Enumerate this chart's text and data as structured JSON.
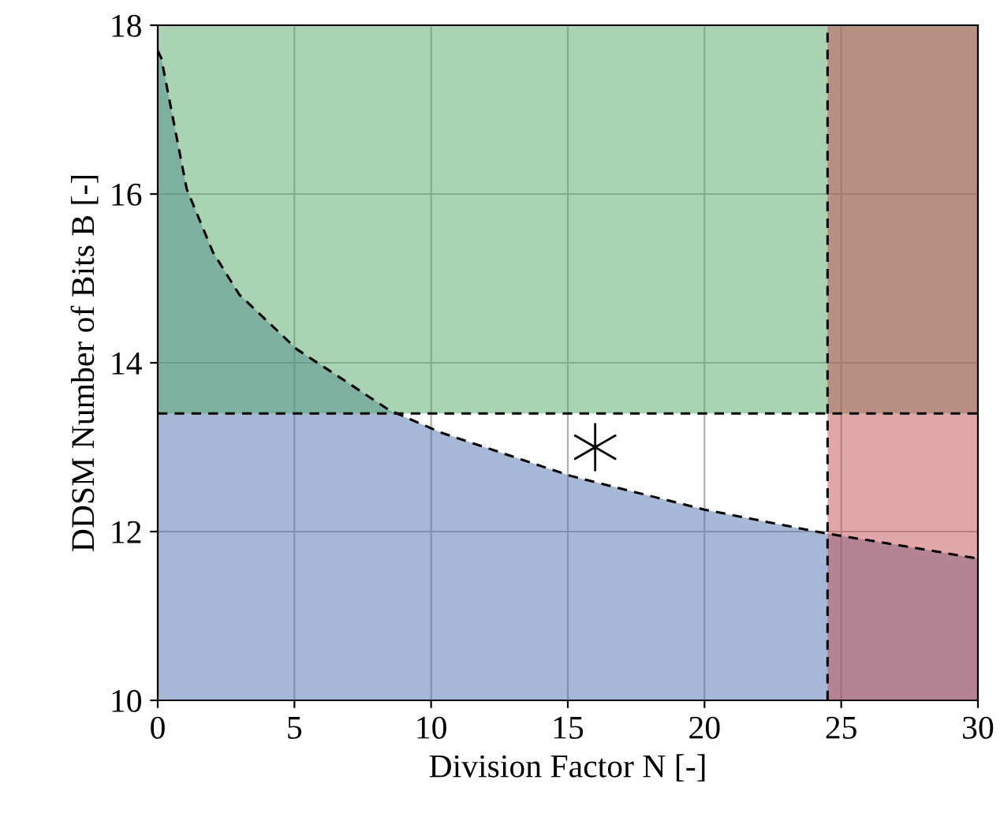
{
  "chart_data": {
    "type": "area",
    "xlabel": "Division Factor N [-]",
    "ylabel": "DDSM Number of Bits B [-]",
    "xlim": [
      0,
      30
    ],
    "ylim": [
      10,
      18
    ],
    "xticks": [
      0,
      5,
      10,
      15,
      20,
      25,
      30
    ],
    "yticks": [
      10,
      12,
      14,
      16,
      18
    ],
    "grid": true,
    "series": [
      {
        "color": "#4c72b0",
        "line_style": "dashed",
        "x": [
          0,
          0.13,
          1.06,
          2.02,
          2.98,
          5.09,
          7.02,
          8.46,
          10.39,
          15.1,
          20.0,
          24.4,
          26.9,
          30
        ],
        "values": [
          17.7,
          17.61,
          16.06,
          15.31,
          14.81,
          14.16,
          13.75,
          13.44,
          13.17,
          12.66,
          12.26,
          11.98,
          11.85,
          11.68
        ]
      },
      {
        "type": "scatter",
        "marker": "cross",
        "color": "#000000",
        "x": [
          16
        ],
        "values": [
          13
        ]
      }
    ],
    "bands": [
      {
        "axis": "y",
        "from": 13.4,
        "to": 18,
        "color": "#55a868"
      },
      {
        "axis": "x",
        "from": 24.5,
        "to": 30,
        "color": "#c44e52"
      }
    ],
    "ref_lines": [
      {
        "axis": "y",
        "value": 13.4,
        "line_style": "dashed",
        "color": "#000000"
      },
      {
        "axis": "x",
        "value": 24.5,
        "line_style": "dashed",
        "color": "#000000"
      }
    ]
  }
}
